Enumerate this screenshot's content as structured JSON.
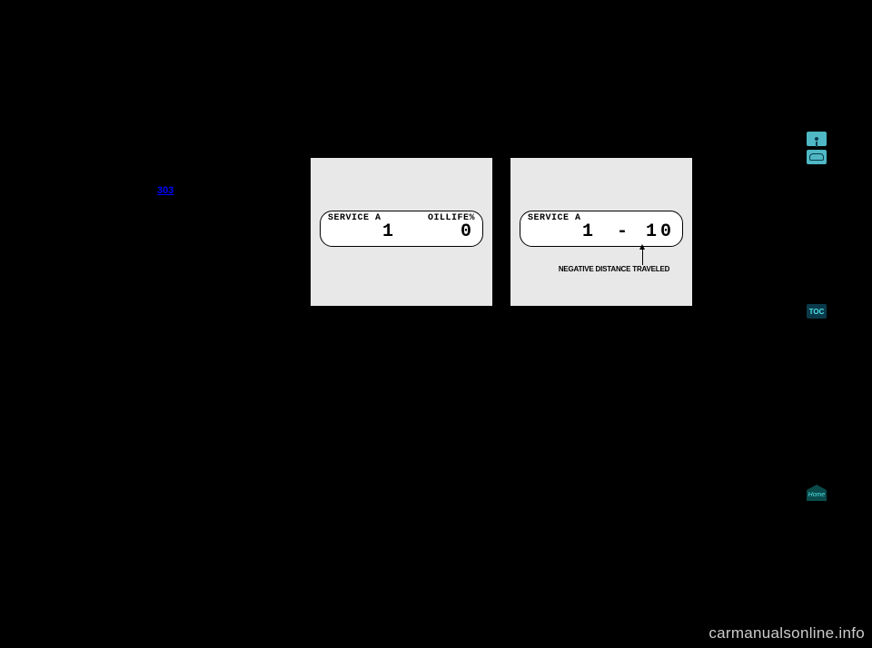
{
  "page_link": {
    "text": "303",
    "color": "#0000ff"
  },
  "lcd_left": {
    "top_left": "SERVICE  A",
    "top_right": "OILLIFE%",
    "main_left": "1",
    "main_right": "0"
  },
  "lcd_right": {
    "top_left": "SERVICE  A",
    "top_right": "",
    "main_left": "1",
    "main_right": "- 10",
    "callout": "NEGATIVE DISTANCE TRAVELED"
  },
  "side_buttons": {
    "toc": "TOC",
    "home": "Home"
  },
  "watermark": "carmanualsonline.info",
  "panel_bg": "#e8e8e8",
  "page_bg": "#000000",
  "accent_color": "#4fb8c4",
  "toc_bg": "#0a3a4a",
  "toc_fg": "#4fe0e8"
}
